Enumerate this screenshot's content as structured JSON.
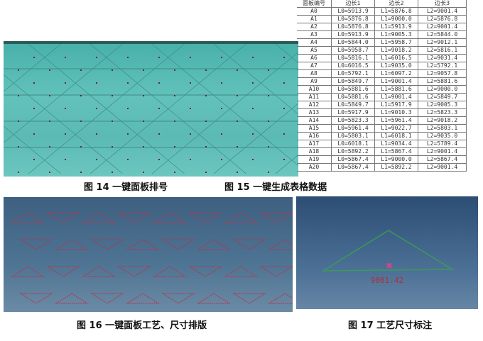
{
  "figures": [
    {
      "caption": "图 14 一键面板排号"
    },
    {
      "caption": "图 15 一键生成表格数据"
    },
    {
      "caption": "图 16 一键面板工艺、尺寸排版"
    },
    {
      "caption": "图 17 工艺尺寸标注",
      "dimension_label": "9001.42"
    }
  ],
  "table": {
    "headers": [
      "面板编号",
      "边长1",
      "边长2",
      "边长3"
    ],
    "rows": [
      [
        "A0",
        "L0=5913.9",
        "L1=5876.8",
        "L2=9001.4"
      ],
      [
        "A1",
        "L0=5876.8",
        "L1=9000.0",
        "L2=5876.8"
      ],
      [
        "A2",
        "L0=5876.8",
        "L1=5913.9",
        "L2=9001.4"
      ],
      [
        "A3",
        "L0=5913.9",
        "L1=9005.3",
        "L2=5844.0"
      ],
      [
        "A4",
        "L0=5844.0",
        "L1=5958.7",
        "L2=9012.1"
      ],
      [
        "A5",
        "L0=5958.7",
        "L1=9018.2",
        "L2=5816.1"
      ],
      [
        "A6",
        "L0=5816.1",
        "L1=6016.5",
        "L2=9031.4"
      ],
      [
        "A7",
        "L0=6016.5",
        "L1=9035.0",
        "L2=5792.1"
      ],
      [
        "A8",
        "L0=5792.1",
        "L1=6097.2",
        "L2=9057.8"
      ],
      [
        "A9",
        "L0=5849.7",
        "L1=9001.4",
        "L2=5881.6"
      ],
      [
        "A10",
        "L0=5881.6",
        "L1=5881.6",
        "L2=9000.0"
      ],
      [
        "A11",
        "L0=5881.6",
        "L1=9001.4",
        "L2=5849.7"
      ],
      [
        "A12",
        "L0=5849.7",
        "L1=5917.9",
        "L2=9005.3"
      ],
      [
        "A13",
        "L0=5917.9",
        "L1=9010.3",
        "L2=5823.3"
      ],
      [
        "A14",
        "L0=5823.3",
        "L1=5961.4",
        "L2=9018.2"
      ],
      [
        "A15",
        "L0=5961.4",
        "L1=9022.7",
        "L2=5803.1"
      ],
      [
        "A16",
        "L0=5803.1",
        "L1=6018.1",
        "L2=9035.0"
      ],
      [
        "A17",
        "L0=6018.1",
        "L1=9034.4",
        "L2=5789.4"
      ],
      [
        "A18",
        "L0=5892.2",
        "L1=5867.4",
        "L2=9001.4"
      ],
      [
        "A19",
        "L0=5867.4",
        "L1=9000.0",
        "L2=5867.4"
      ],
      [
        "A20",
        "L0=5867.4",
        "L1=5892.2",
        "L2=9001.4"
      ]
    ]
  },
  "colors": {
    "panel_teal": "#5bbab4",
    "mark_red": "#c0304a",
    "edge_green": "#3a9a5a"
  }
}
